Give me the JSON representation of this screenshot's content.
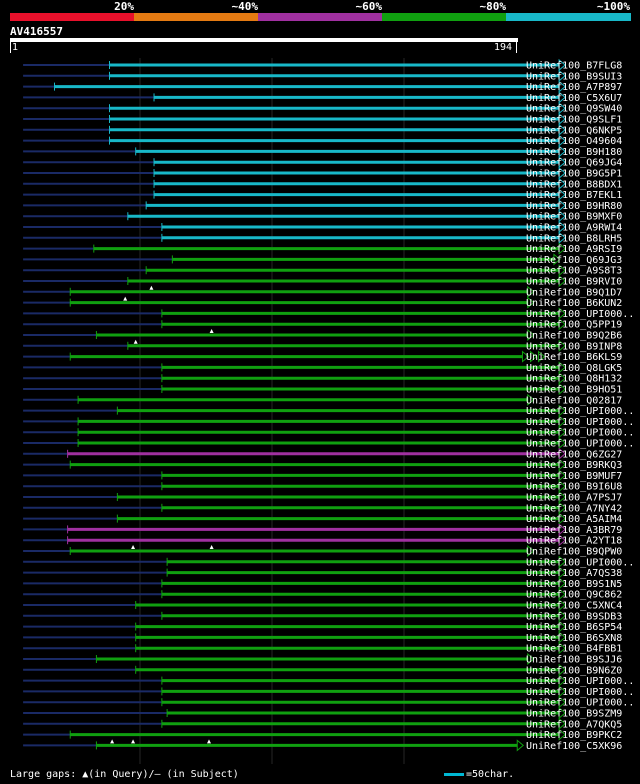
{
  "legend": {
    "colors": [
      "#e8102b",
      "#e47a12",
      "#a030a0",
      "#10a010",
      "#18b8c8"
    ],
    "labels": [
      "20%",
      "~40%",
      "~60%",
      "~80%",
      "~100%"
    ]
  },
  "query": {
    "id": "AV416557",
    "start": "1",
    "end": "194",
    "length": 194
  },
  "hits": [
    {
      "label": "UniRef100_B7FLG8",
      "start": 38,
      "end": 212,
      "sub_start": 5,
      "color": "#18b8c8"
    },
    {
      "label": "UniRef100_B9SUI3",
      "start": 38,
      "end": 212,
      "sub_start": 5,
      "color": "#18b8c8"
    },
    {
      "label": "UniRef100_A7P897",
      "start": 17,
      "end": 212,
      "sub_start": 5,
      "color": "#18b8c8"
    },
    {
      "label": "UniRef100_C5X6U7",
      "start": 55,
      "end": 212,
      "sub_start": 5,
      "color": "#18b8c8"
    },
    {
      "label": "UniRef100_Q9SW40",
      "start": 38,
      "end": 212,
      "sub_start": 5,
      "color": "#18b8c8"
    },
    {
      "label": "UniRef100_Q9SLF1",
      "start": 38,
      "end": 212,
      "sub_start": 5,
      "color": "#18b8c8"
    },
    {
      "label": "UniRef100_Q6NKP5",
      "start": 38,
      "end": 212,
      "sub_start": 5,
      "color": "#18b8c8"
    },
    {
      "label": "UniRef100_O49604",
      "start": 38,
      "end": 212,
      "sub_start": 5,
      "color": "#18b8c8"
    },
    {
      "label": "UniRef100_B9H180",
      "start": 48,
      "end": 212,
      "sub_start": 5,
      "color": "#18b8c8"
    },
    {
      "label": "UniRef100_Q69JG4",
      "start": 55,
      "end": 212,
      "sub_start": 5,
      "color": "#18b8c8"
    },
    {
      "label": "UniRef100_B9G5P1",
      "start": 55,
      "end": 212,
      "sub_start": 5,
      "color": "#18b8c8"
    },
    {
      "label": "UniRef100_B8BDX1",
      "start": 55,
      "end": 212,
      "sub_start": 5,
      "color": "#18b8c8"
    },
    {
      "label": "UniRef100_B7EKL1",
      "start": 55,
      "end": 212,
      "sub_start": 5,
      "color": "#18b8c8"
    },
    {
      "label": "UniRef100_B9HR80",
      "start": 52,
      "end": 212,
      "sub_start": 5,
      "color": "#18b8c8"
    },
    {
      "label": "UniRef100_B9MXF0",
      "start": 45,
      "end": 212,
      "sub_start": 5,
      "color": "#18b8c8"
    },
    {
      "label": "UniRef100_A9RWI4",
      "start": 58,
      "end": 212,
      "sub_start": 5,
      "color": "#18b8c8"
    },
    {
      "label": "UniRef100_B8LRH5",
      "start": 58,
      "end": 212,
      "sub_start": 5,
      "color": "#18b8c8"
    },
    {
      "label": "UniRef100_A9RSI9",
      "start": 32,
      "end": 212,
      "sub_start": 5,
      "color": "#10a010"
    },
    {
      "label": "UniRef100_Q69JG3",
      "start": 62,
      "end": 210,
      "sub_start": 5,
      "color": "#10a010"
    },
    {
      "label": "UniRef100_A9S8T3",
      "start": 52,
      "end": 212,
      "sub_start": 5,
      "color": "#10a010"
    },
    {
      "label": "UniRef100_B9RVI0",
      "start": 45,
      "end": 212,
      "sub_start": 5,
      "color": "#10a010"
    },
    {
      "label": "UniRef100_B9Q1D7",
      "start": 23,
      "end": 200,
      "sub_start": 5,
      "color": "#10a010",
      "gaps": [
        54
      ]
    },
    {
      "label": "UniRef100_B6KUN2",
      "start": 23,
      "end": 200,
      "sub_start": 5,
      "color": "#10a010",
      "gaps": [
        44
      ]
    },
    {
      "label": "UniRef100_UPI000..",
      "start": 58,
      "end": 212,
      "sub_start": 5,
      "color": "#10a010"
    },
    {
      "label": "UniRef100_Q5PP19",
      "start": 58,
      "end": 212,
      "sub_start": 5,
      "color": "#10a010"
    },
    {
      "label": "UniRef100_B9Q2B6",
      "start": 33,
      "end": 200,
      "sub_start": 5,
      "color": "#10a010",
      "gaps": [
        77
      ]
    },
    {
      "label": "UniRef100_B9INP8",
      "start": 45,
      "end": 212,
      "sub_start": 5,
      "color": "#10a010",
      "gaps": [
        48
      ]
    },
    {
      "label": "UniRef100_B6KLS9",
      "start": 23,
      "end": 198,
      "sub_start": 5,
      "color": "#10a010",
      "extra_arrows": 3
    },
    {
      "label": "UniRef100_Q8LGK5",
      "start": 58,
      "end": 212,
      "sub_start": 5,
      "color": "#10a010"
    },
    {
      "label": "UniRef100_Q8H132",
      "start": 58,
      "end": 212,
      "sub_start": 5,
      "color": "#10a010"
    },
    {
      "label": "UniRef100_B9HO51",
      "start": 58,
      "end": 212,
      "sub_start": 5,
      "color": "#10a010"
    },
    {
      "label": "UniRef100_Q02817",
      "start": 26,
      "end": 200,
      "sub_start": 5,
      "color": "#10a010"
    },
    {
      "label": "UniRef100_UPI000..",
      "start": 41,
      "end": 212,
      "sub_start": 5,
      "color": "#10a010"
    },
    {
      "label": "UniRef100_UPI000..",
      "start": 26,
      "end": 212,
      "sub_start": 5,
      "color": "#10a010"
    },
    {
      "label": "UniRef100_UPI000..",
      "start": 26,
      "end": 212,
      "sub_start": 5,
      "color": "#10a010"
    },
    {
      "label": "UniRef100_UPI000..",
      "start": 26,
      "end": 212,
      "sub_start": 5,
      "color": "#10a010"
    },
    {
      "label": "UniRef100_Q6ZG27",
      "start": 22,
      "end": 212,
      "sub_start": 5,
      "color": "#a030a0"
    },
    {
      "label": "UniRef100_B9RKQ3",
      "start": 23,
      "end": 212,
      "sub_start": 5,
      "color": "#10a010"
    },
    {
      "label": "UniRef100_B9MUF7",
      "start": 58,
      "end": 212,
      "sub_start": 5,
      "color": "#10a010"
    },
    {
      "label": "UniRef100_B9I6U8",
      "start": 58,
      "end": 212,
      "sub_start": 5,
      "color": "#10a010"
    },
    {
      "label": "UniRef100_A7PSJ7",
      "start": 41,
      "end": 212,
      "sub_start": 5,
      "color": "#10a010"
    },
    {
      "label": "UniRef100_A7NY42",
      "start": 58,
      "end": 212,
      "sub_start": 5,
      "color": "#10a010"
    },
    {
      "label": "UniRef100_A5AIM4",
      "start": 41,
      "end": 212,
      "sub_start": 5,
      "color": "#10a010"
    },
    {
      "label": "UniRef100_A3BR79",
      "start": 22,
      "end": 212,
      "sub_start": 5,
      "color": "#a030a0"
    },
    {
      "label": "UniRef100_A2YT18",
      "start": 22,
      "end": 212,
      "sub_start": 5,
      "color": "#a030a0"
    },
    {
      "label": "UniRef100_B9QPW0",
      "start": 23,
      "end": 200,
      "sub_start": 5,
      "color": "#10a010",
      "gaps": [
        47,
        77
      ]
    },
    {
      "label": "UniRef100_UPI000..",
      "start": 60,
      "end": 212,
      "sub_start": 5,
      "color": "#10a010"
    },
    {
      "label": "UniRef100_A7QS38",
      "start": 60,
      "end": 212,
      "sub_start": 5,
      "color": "#10a010"
    },
    {
      "label": "UniRef100_B9S1N5",
      "start": 58,
      "end": 212,
      "sub_start": 5,
      "color": "#10a010"
    },
    {
      "label": "UniRef100_Q9C862",
      "start": 58,
      "end": 212,
      "sub_start": 5,
      "color": "#10a010"
    },
    {
      "label": "UniRef100_C5XNC4",
      "start": 48,
      "end": 212,
      "sub_start": 5,
      "color": "#10a010"
    },
    {
      "label": "UniRef100_B9SDB3",
      "start": 58,
      "end": 212,
      "sub_start": 5,
      "color": "#10a010"
    },
    {
      "label": "UniRef100_B6SP54",
      "start": 48,
      "end": 212,
      "sub_start": 5,
      "color": "#10a010"
    },
    {
      "label": "UniRef100_B6SXN8",
      "start": 48,
      "end": 212,
      "sub_start": 5,
      "color": "#10a010"
    },
    {
      "label": "UniRef100_B4FBB1",
      "start": 48,
      "end": 212,
      "sub_start": 5,
      "color": "#10a010"
    },
    {
      "label": "UniRef100_B9SJJ6",
      "start": 33,
      "end": 200,
      "sub_start": 5,
      "color": "#10a010"
    },
    {
      "label": "UniRef100_B9N6Z0",
      "start": 48,
      "end": 212,
      "sub_start": 5,
      "color": "#10a010"
    },
    {
      "label": "UniRef100_UPI000..",
      "start": 58,
      "end": 212,
      "sub_start": 5,
      "color": "#10a010"
    },
    {
      "label": "UniRef100_UPI000..",
      "start": 58,
      "end": 212,
      "sub_start": 5,
      "color": "#10a010"
    },
    {
      "label": "UniRef100_UPI000..",
      "start": 58,
      "end": 212,
      "sub_start": 5,
      "color": "#10a010"
    },
    {
      "label": "UniRef100_B9SZM9",
      "start": 60,
      "end": 212,
      "sub_start": 5,
      "color": "#10a010"
    },
    {
      "label": "UniRef100_A7QKQ5",
      "start": 58,
      "end": 212,
      "sub_start": 5,
      "color": "#10a010"
    },
    {
      "label": "UniRef100_B9PKC2",
      "start": 23,
      "end": 212,
      "sub_start": 5,
      "color": "#10a010"
    },
    {
      "label": "UniRef100_C5XK96",
      "start": 33,
      "end": 196,
      "sub_start": 5,
      "color": "#10a010",
      "gaps": [
        39,
        47,
        76
      ]
    }
  ],
  "footer": {
    "large_gaps": "Large gaps: ▲(in Query)/– (in Subject)",
    "scale": "=50char."
  }
}
